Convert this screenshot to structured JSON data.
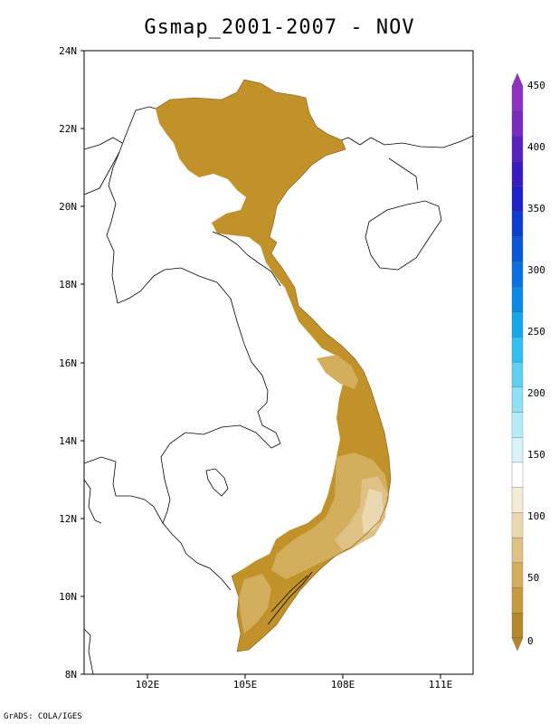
{
  "title": "Gsmap_2001-2007 - NOV",
  "credit": "GrADS: COLA/IGES",
  "map": {
    "lat_labels": [
      "24N",
      "22N",
      "20N",
      "18N",
      "16N",
      "14N",
      "12N",
      "10N",
      "8N"
    ],
    "lon_labels": [
      "102E",
      "105E",
      "108E",
      "111E"
    ],
    "lat_range": [
      8,
      24
    ],
    "lon_range": [
      100,
      113
    ],
    "land_color": "#c1922a",
    "dry_land_color": "#e8d6ab"
  },
  "colorbar": {
    "labels": [
      "450",
      "400",
      "350",
      "300",
      "250",
      "200",
      "150",
      "100",
      "50",
      "0"
    ],
    "colors": [
      "#b8862a",
      "#c69a3e",
      "#d3ae5c",
      "#dfc186",
      "#ead8b0",
      "#f5ecd8",
      "#ffffff",
      "#d8f4fb",
      "#b4ebf8",
      "#8ee0f6",
      "#5fd0f3",
      "#32c0f0",
      "#14a8eb",
      "#0a8ae6",
      "#0a6fe0",
      "#0a56d8",
      "#0a3ed0",
      "#1a22c8",
      "#3a1ac2",
      "#5a20c0",
      "#7a2ac0",
      "#9030c0"
    ]
  }
}
